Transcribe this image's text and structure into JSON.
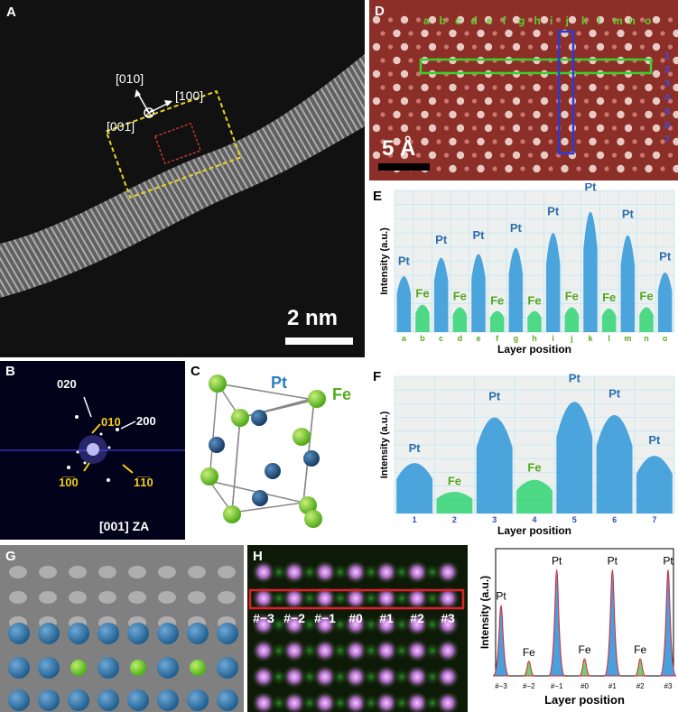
{
  "panels": {
    "A": {
      "label": "A",
      "dir_010": "[010]",
      "dir_100": "[100]",
      "dir_001": "[001]",
      "scale": "2 nm"
    },
    "B": {
      "label": "B",
      "spot_020": "020",
      "spot_010": "010",
      "spot_200": "200",
      "spot_110": "1̅1̅0",
      "spot_100": "1̅0̅0",
      "zone_axis": "[001] ZA"
    },
    "C": {
      "label": "C",
      "pt": "Pt",
      "fe": "Fe"
    },
    "D": {
      "label": "D",
      "columns": [
        "a",
        "b",
        "c",
        "d",
        "e",
        "f",
        "g",
        "h",
        "i",
        "j",
        "k",
        "l",
        "m",
        "n",
        "o"
      ],
      "rows": [
        "1",
        "2",
        "3",
        "4",
        "5",
        "6",
        "7"
      ],
      "scale": "5 Å"
    },
    "G": {
      "label": "G"
    },
    "H": {
      "label": "H",
      "positions": [
        "#−3",
        "#−2",
        "#−1",
        "#0",
        "#1",
        "#2",
        "#3"
      ]
    }
  },
  "chart_data": [
    {
      "id": "E",
      "label": "E",
      "type": "bar",
      "ylabel": "Intensity (a.u.)",
      "xlabel": "Layer position",
      "categories": [
        "a",
        "b",
        "c",
        "d",
        "e",
        "f",
        "g",
        "h",
        "i",
        "j",
        "k",
        "l",
        "m",
        "n",
        "o"
      ],
      "peak_labels": [
        "Pt",
        "Fe",
        "Pt",
        "Fe",
        "Pt",
        "Fe",
        "Pt",
        "Fe",
        "Pt",
        "Fe",
        "Pt",
        "Fe",
        "Pt",
        "Fe",
        "Pt"
      ],
      "values": [
        0.45,
        0.22,
        0.6,
        0.2,
        0.63,
        0.17,
        0.68,
        0.17,
        0.8,
        0.2,
        0.97,
        0.19,
        0.78,
        0.2,
        0.48
      ],
      "ylim": [
        0,
        1
      ]
    },
    {
      "id": "F",
      "label": "F",
      "type": "bar",
      "ylabel": "Intensity (a.u.)",
      "xlabel": "Layer position",
      "categories": [
        "1",
        "2",
        "3",
        "4",
        "5",
        "6",
        "7"
      ],
      "peak_labels": [
        "Pt",
        "Fe",
        "Pt",
        "Fe",
        "Pt",
        "Pt",
        "Pt"
      ],
      "values": [
        0.42,
        0.18,
        0.8,
        0.28,
        0.93,
        0.82,
        0.48
      ],
      "ylim": [
        0,
        1
      ]
    },
    {
      "id": "H-profile",
      "type": "line",
      "ylabel": "Intensity (a.u.)",
      "xlabel": "Layer position",
      "categories": [
        "#−3",
        "#−2",
        "#−1",
        "#0",
        "#1",
        "#2",
        "#3"
      ],
      "peak_labels": [
        "Pt",
        "Fe",
        "Pt",
        "Fe",
        "Pt",
        "Fe",
        "Pt"
      ],
      "values": [
        0.58,
        0.12,
        0.87,
        0.14,
        0.87,
        0.14,
        0.87
      ],
      "ylim": [
        0,
        1
      ]
    }
  ]
}
